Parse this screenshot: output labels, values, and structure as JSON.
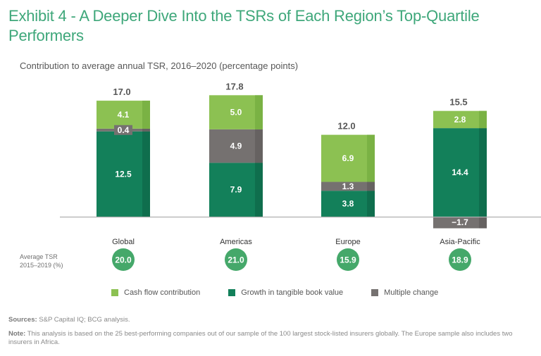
{
  "header": {
    "title": "Exhibit 4 - A Deeper Dive Into the TSRs of Each Region’s Top-Quartile Performers",
    "subtitle": "Contribution to average annual TSR, 2016–2020 (percentage points)"
  },
  "colors": {
    "cash_flow": "#8cc152",
    "cash_flow_side": "#7ab244",
    "growth": "#13805a",
    "growth_side": "#0f6e4d",
    "multiple": "#757170",
    "multiple_side": "#666261",
    "tsr_circle": "#45a86a",
    "baseline": "#b0b0b0"
  },
  "tsr_caption": {
    "line1": "Average TSR",
    "line2": "2015–2019 (%)"
  },
  "legend": [
    {
      "label": "Cash flow contribution",
      "key": "cash_flow"
    },
    {
      "label": "Growth in tangible book value",
      "key": "growth"
    },
    {
      "label": "Multiple change",
      "key": "multiple"
    }
  ],
  "footer": {
    "sources_label": "Sources:",
    "sources_text": " S&P Capital IQ; BCG analysis.",
    "note_label": "Note:",
    "note_text": " This analysis is based on the 25 best-performing companies out of our sample of the 100 largest stock-listed insurers globally. The Europe sample also includes two insurers in Africa."
  },
  "chart_data": {
    "type": "bar",
    "stacked": true,
    "title": "Exhibit 4 - A Deeper Dive Into the TSRs of Each Region’s Top-Quartile Performers",
    "subtitle": "Contribution to average annual TSR, 2016–2020 (percentage points)",
    "xlabel": "",
    "ylabel": "",
    "categories": [
      "Global",
      "Americas",
      "Europe",
      "Asia-Pacific"
    ],
    "series": [
      {
        "name": "Growth in tangible book value",
        "key": "growth",
        "values": [
          12.5,
          7.9,
          3.8,
          14.4
        ]
      },
      {
        "name": "Multiple change",
        "key": "multiple",
        "values": [
          0.4,
          4.9,
          1.3,
          -1.7
        ]
      },
      {
        "name": "Cash flow contribution",
        "key": "cash_flow",
        "values": [
          4.1,
          5.0,
          6.9,
          2.8
        ]
      }
    ],
    "totals": [
      17.0,
      17.8,
      12.0,
      15.5
    ],
    "totals_labels": [
      "17.0",
      "17.8",
      "12.0",
      "15.5"
    ],
    "segment_labels": [
      [
        "12.5",
        "0.4",
        "4.1"
      ],
      [
        "7.9",
        "4.9",
        "5.0"
      ],
      [
        "3.8",
        "1.3",
        "6.9"
      ],
      [
        "14.4",
        "−1.7",
        "2.8"
      ]
    ],
    "average_tsr_2015_2019": [
      20.0,
      21.0,
      15.9,
      18.9
    ],
    "average_tsr_labels": [
      "20.0",
      "21.0",
      "15.9",
      "18.9"
    ],
    "grid": false,
    "legend_position": "bottom"
  }
}
